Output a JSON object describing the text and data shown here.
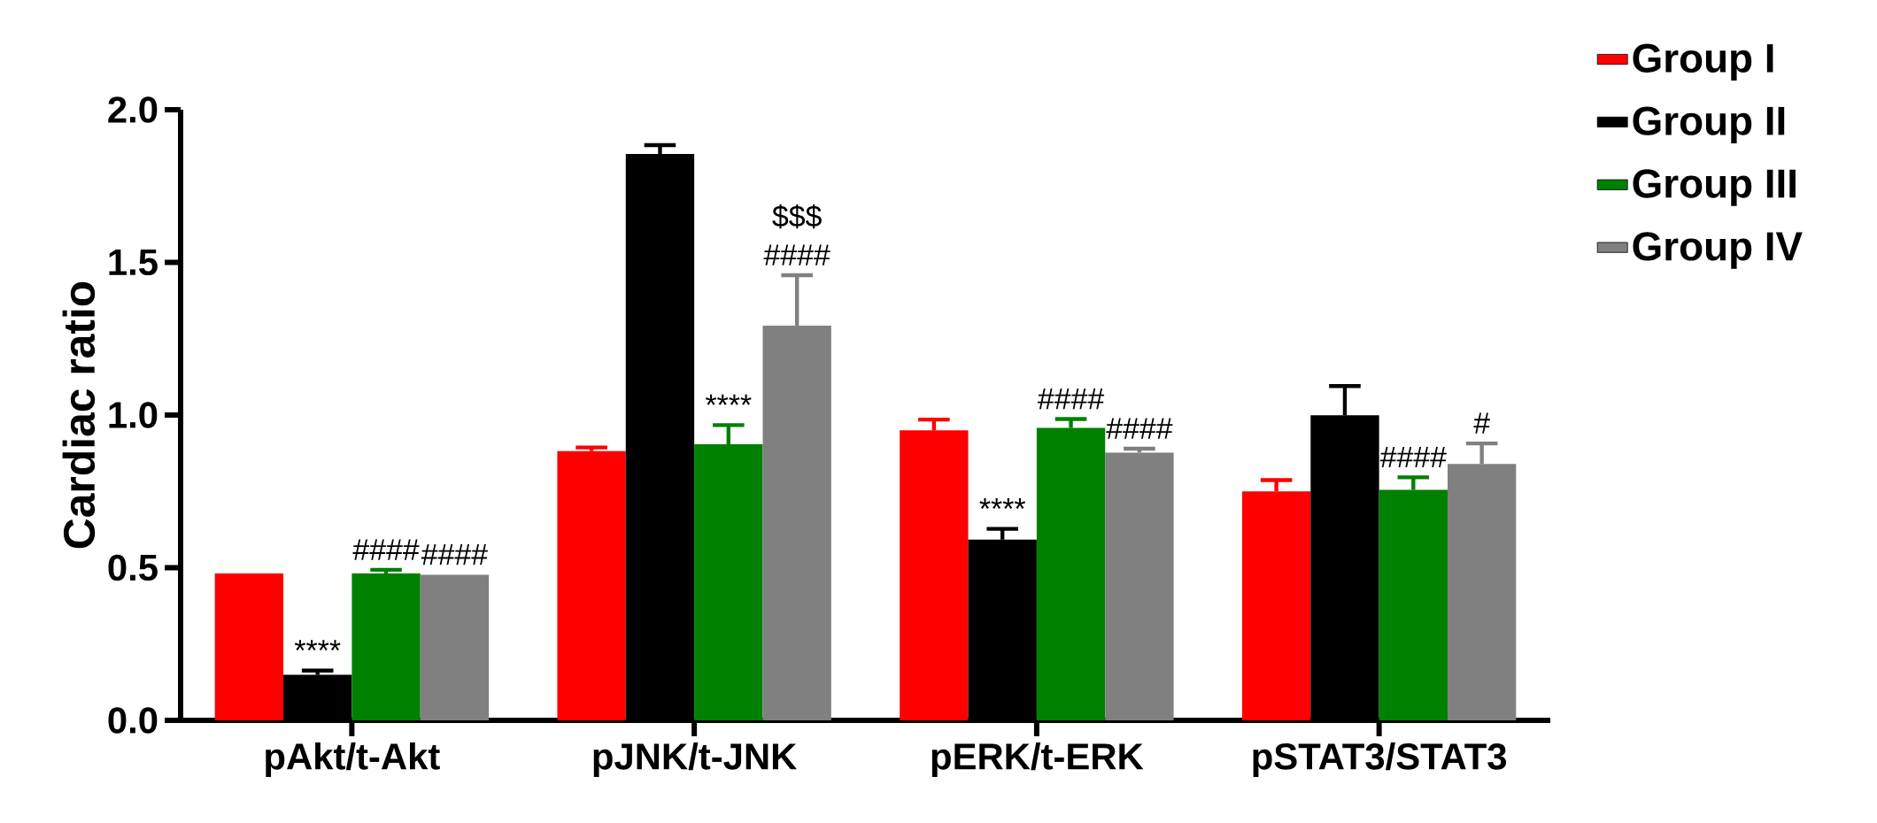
{
  "chart_data": {
    "type": "bar",
    "ylabel": "Cardiac ratio",
    "categories": [
      "pAkt/t-Akt",
      "pJNK/t-JNK",
      "pERK/t-ERK",
      "pSTAT3/STAT3"
    ],
    "series": [
      {
        "name": "Group I",
        "color": "#ff0000",
        "values": [
          0.481,
          0.882,
          0.95,
          0.75
        ],
        "errors": [
          null,
          [
            0.882,
            0.894
          ],
          [
            0.95,
            0.985
          ],
          [
            0.75,
            0.787
          ]
        ],
        "value_labels": [
          null,
          null,
          null,
          null
        ]
      },
      {
        "name": "Group II",
        "color": "#000000",
        "values": [
          0.149,
          1.855,
          0.592,
          0.999
        ],
        "errors": [
          [
            0.149,
            0.163
          ],
          [
            1.855,
            1.884
          ],
          [
            0.592,
            0.627
          ],
          [
            0.999,
            1.095
          ]
        ],
        "value_labels": [
          "****",
          null,
          "****",
          null
        ]
      },
      {
        "name": "Group III",
        "color": "#008000",
        "values": [
          0.481,
          0.904,
          0.958,
          0.755
        ],
        "errors": [
          [
            0.481,
            0.493
          ],
          [
            0.904,
            0.967
          ],
          [
            0.958,
            0.987
          ],
          [
            0.755,
            0.796
          ]
        ],
        "value_labels": [
          "####",
          "****",
          "####",
          "####"
        ]
      },
      {
        "name": "Group IV",
        "color": "#808080",
        "values": [
          0.477,
          1.293,
          0.877,
          0.84
        ],
        "errors": [
          null,
          [
            1.293,
            1.458
          ],
          [
            0.877,
            0.89
          ],
          [
            0.84,
            0.907
          ]
        ],
        "value_labels": [
          "####",
          "####",
          "####",
          "#"
        ]
      }
    ],
    "annotations": [
      "$$$"
    ],
    "ylim": [
      0,
      2.0
    ],
    "yticks": [
      {
        "value": 0,
        "label": "0.0"
      },
      {
        "value": 0.5,
        "label": "0.5"
      },
      {
        "value": 1.0,
        "label": "1.0"
      },
      {
        "value": 1.5,
        "label": "1.5"
      },
      {
        "value": 2.0,
        "label": "2.0"
      }
    ],
    "grid": false,
    "legend": "top right"
  }
}
